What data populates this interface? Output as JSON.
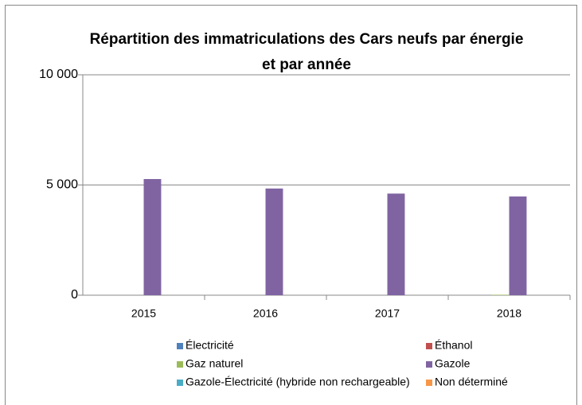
{
  "chart_data": {
    "type": "bar",
    "title": "Répartition des immatriculations des Cars neufs par énergie et par année",
    "categories": [
      "2015",
      "2016",
      "2017",
      "2018"
    ],
    "series": [
      {
        "name": "Électricité",
        "color": "#4f81bd",
        "values": [
          0,
          0,
          0,
          0
        ]
      },
      {
        "name": "Éthanol",
        "color": "#c0504d",
        "values": [
          0,
          0,
          0,
          0
        ]
      },
      {
        "name": "Gaz naturel",
        "color": "#9bbb59",
        "values": [
          0,
          0,
          0,
          20
        ]
      },
      {
        "name": "Gazole",
        "color": "#8064a2",
        "values": [
          5270,
          4840,
          4610,
          4480
        ]
      },
      {
        "name": "Gazole-Électricité (hybride non rechargeable)",
        "color": "#4bacc6",
        "values": [
          0,
          0,
          0,
          0
        ]
      },
      {
        "name": "Non déterminé",
        "color": "#f79646",
        "values": [
          0,
          0,
          0,
          0
        ]
      }
    ],
    "ylim": [
      0,
      10000
    ],
    "yticks": [
      {
        "value": 0,
        "label": "0"
      },
      {
        "value": 5000,
        "label": "5 000"
      },
      {
        "value": 10000,
        "label": "10 000"
      }
    ],
    "grid": true,
    "legend": "bottom"
  }
}
